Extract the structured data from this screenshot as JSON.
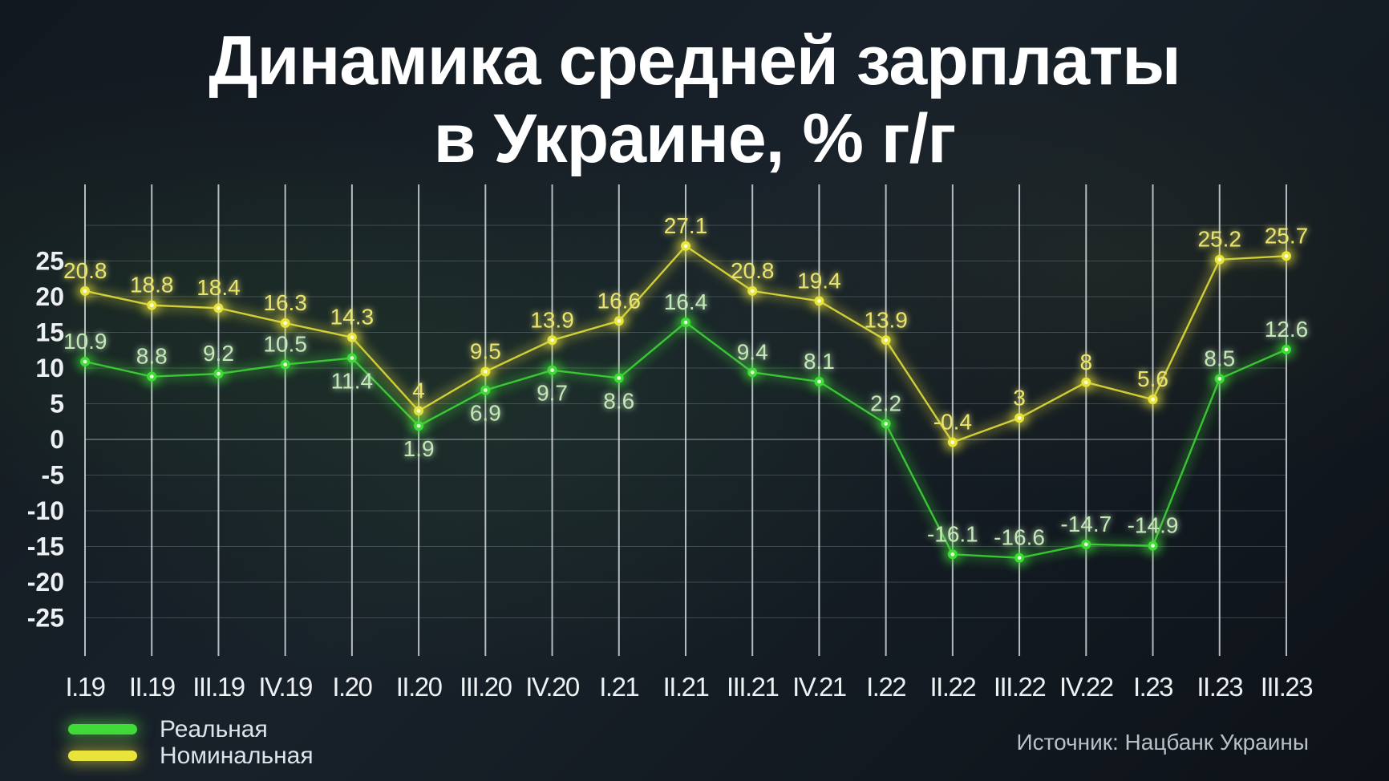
{
  "title": {
    "line1": "Динамика средней зарплаты",
    "line2": "в Украине, % г/г"
  },
  "legend": {
    "items": [
      {
        "label": "Реальная",
        "color": "#3fdb38"
      },
      {
        "label": "Номинальная",
        "color": "#e9e43c"
      }
    ]
  },
  "source": "Источник: Нацбанк Украины",
  "colors": {
    "background": "#12181f",
    "grid_vertical": "rgba(235,240,245,0.75)",
    "grid_horizontal": "rgba(205,215,225,0.22)",
    "grid_zero": "rgba(220,228,235,0.42)",
    "axis_text": "#eef1f3",
    "real_line": "#3fdb38",
    "real_label": "#c3e9b6",
    "nominal_line": "#e9e43c",
    "nominal_label": "#e9e46e"
  },
  "chart_data": {
    "type": "line",
    "title": "Динамика средней зарплаты в Украине, % г/г",
    "xlabel": "",
    "ylabel": "",
    "ylim": [
      -25,
      30
    ],
    "y_ticks": [
      25,
      20,
      15,
      10,
      5,
      0,
      -5,
      -10,
      -15,
      -20,
      -25
    ],
    "grid": true,
    "legend_position": "bottom-left",
    "categories": [
      "I.19",
      "II.19",
      "III.19",
      "IV.19",
      "I.20",
      "II.20",
      "III.20",
      "IV.20",
      "I.21",
      "II.21",
      "III.21",
      "IV.21",
      "I.22",
      "II.22",
      "III.22",
      "IV.22",
      "I.23",
      "II.23",
      "III.23"
    ],
    "series": [
      {
        "name": "Номинальная",
        "color": "#e9e43c",
        "label_color": "#e9e46e",
        "values": [
          20.8,
          18.8,
          18.4,
          16.3,
          14.3,
          4,
          9.5,
          13.9,
          16.6,
          27.1,
          20.8,
          19.4,
          13.9,
          -0.4,
          3,
          8,
          5.6,
          25.2,
          25.7
        ],
        "labels_below": [
          false,
          false,
          false,
          false,
          false,
          false,
          false,
          false,
          false,
          false,
          false,
          false,
          false,
          false,
          false,
          false,
          false,
          false,
          false
        ]
      },
      {
        "name": "Реальная",
        "color": "#3fdb38",
        "label_color": "#c3e9b6",
        "values": [
          10.9,
          8.8,
          9.2,
          10.5,
          11.4,
          1.9,
          6.9,
          9.7,
          8.6,
          16.4,
          9.4,
          8.1,
          2.2,
          -16.1,
          -16.6,
          -14.7,
          -14.9,
          8.5,
          12.6
        ],
        "labels_below": [
          false,
          false,
          false,
          false,
          true,
          true,
          true,
          true,
          true,
          false,
          false,
          false,
          false,
          false,
          false,
          false,
          false,
          false,
          false
        ]
      }
    ]
  }
}
